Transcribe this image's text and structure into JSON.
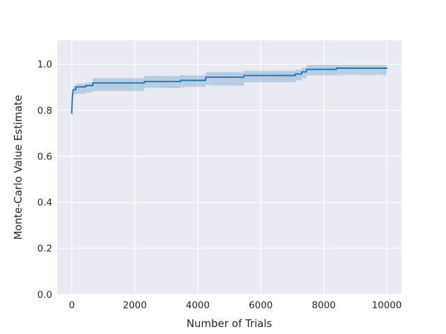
{
  "chart_data": {
    "type": "line",
    "title": "",
    "xlabel": "Number of Trials",
    "ylabel": "Monte-Carlo Value Estimate",
    "grid": true,
    "legend": "none",
    "xlim": [
      -465,
      10465
    ],
    "ylim": [
      0,
      1.104
    ],
    "x_ticks": [
      0,
      2000,
      4000,
      6000,
      8000,
      10000
    ],
    "x_tick_labels": [
      "0",
      "2000",
      "4000",
      "6000",
      "8000",
      "10000"
    ],
    "y_ticks": [
      0.0,
      0.2,
      0.4,
      0.6,
      0.8,
      1.0
    ],
    "y_tick_labels": [
      "0.0",
      "0.2",
      "0.4",
      "0.6",
      "0.8",
      "1.0"
    ],
    "colors": {
      "figure_bg": "#ffffff",
      "plot_bg": "#eaeaf2",
      "gridline": "#ffffff",
      "line": "#1f77b4",
      "band_fill": "#1f77b4",
      "band_opacity": 0.25,
      "edge_mark": "#8ab3d8",
      "text": "#262626"
    },
    "series": [
      {
        "name": "Monte-Carlo value estimate",
        "points": [
          [
            0,
            0.788
          ],
          [
            15,
            0.855
          ],
          [
            30,
            0.878
          ],
          [
            45,
            0.89
          ],
          [
            130,
            0.89
          ],
          [
            130,
            0.902
          ],
          [
            440,
            0.902
          ],
          [
            440,
            0.907
          ],
          [
            665,
            0.907
          ],
          [
            665,
            0.919
          ],
          [
            2300,
            0.919
          ],
          [
            2300,
            0.925
          ],
          [
            3450,
            0.925
          ],
          [
            3450,
            0.93
          ],
          [
            4250,
            0.93
          ],
          [
            4250,
            0.944
          ],
          [
            5470,
            0.944
          ],
          [
            5470,
            0.951
          ],
          [
            7100,
            0.951
          ],
          [
            7100,
            0.958
          ],
          [
            7300,
            0.958
          ],
          [
            7300,
            0.967
          ],
          [
            7450,
            0.967
          ],
          [
            7450,
            0.978
          ],
          [
            8400,
            0.978
          ],
          [
            8400,
            0.983
          ],
          [
            10000,
            0.983
          ]
        ]
      }
    ],
    "band": [
      [
        0,
        0.772,
        0.8
      ],
      [
        15,
        0.82,
        0.872
      ],
      [
        30,
        0.852,
        0.896
      ],
      [
        45,
        0.868,
        0.906
      ],
      [
        130,
        0.872,
        0.916
      ],
      [
        440,
        0.878,
        0.92
      ],
      [
        665,
        0.884,
        0.94
      ],
      [
        2300,
        0.897,
        0.947
      ],
      [
        3450,
        0.902,
        0.952
      ],
      [
        4250,
        0.91,
        0.966
      ],
      [
        5470,
        0.922,
        0.972
      ],
      [
        7100,
        0.93,
        0.977
      ],
      [
        7300,
        0.94,
        0.985
      ],
      [
        7450,
        0.952,
        0.995
      ],
      [
        8400,
        0.956,
        0.997
      ],
      [
        10000,
        0.956,
        0.997
      ]
    ],
    "edge_marks": [
      {
        "x1": 2300,
        "x2": 3560,
        "v": 0.948
      },
      {
        "x1": 2950,
        "x2": 3560,
        "v": 0.9
      },
      {
        "x1": 4400,
        "x2": 5470,
        "v": 0.908
      },
      {
        "x1": 4900,
        "x2": 7100,
        "v": 0.957
      },
      {
        "x1": 7450,
        "x2": 8400,
        "v": 0.996
      },
      {
        "x1": 8380,
        "x2": 10000,
        "v": 0.953
      }
    ]
  }
}
